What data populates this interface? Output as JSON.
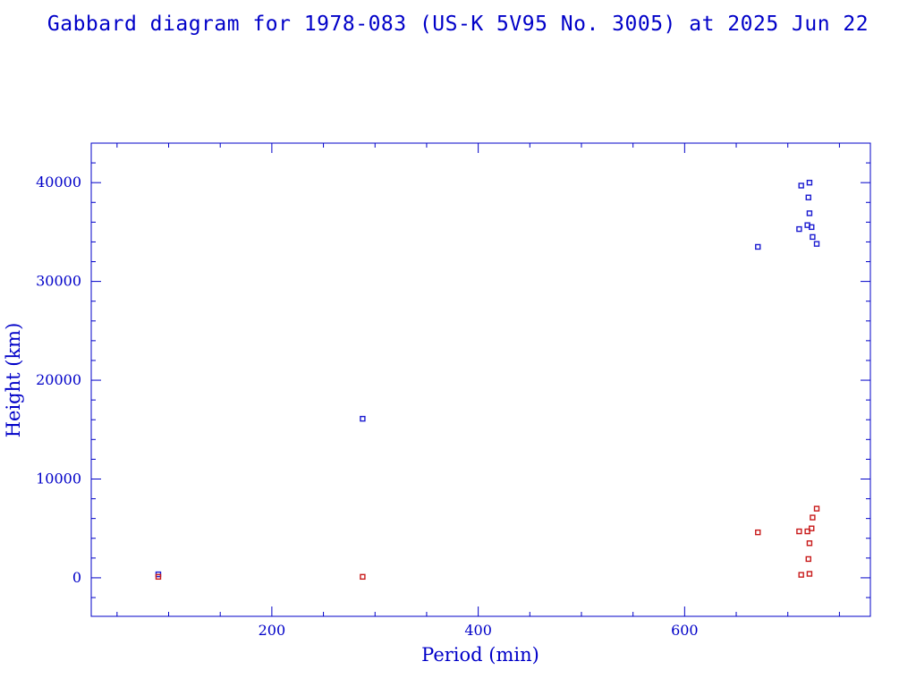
{
  "chart_data": {
    "type": "scatter",
    "title": "Gabbard diagram for 1978-083 (US-K 5V95 No. 3005) at 2025 Jun 22",
    "xlabel": "Period (min)",
    "ylabel": "Height (km)",
    "xlim": [
      25,
      780
    ],
    "ylim": [
      -3900,
      44000
    ],
    "xticks": [
      200,
      400,
      600
    ],
    "yticks": [
      0,
      10000,
      20000,
      30000,
      40000
    ],
    "colors": {
      "apogee": "#1a1ad0",
      "perigee": "#c81a1a",
      "axes": "#0000c8"
    },
    "series": [
      {
        "role": "apogee",
        "points": [
          [
            90,
            350
          ],
          [
            288,
            16100
          ],
          [
            671,
            33500
          ],
          [
            711,
            35300
          ],
          [
            713,
            39700
          ],
          [
            719,
            35700
          ],
          [
            720,
            38500
          ],
          [
            721,
            40000
          ],
          [
            721,
            36900
          ],
          [
            723,
            35500
          ],
          [
            724,
            34500
          ],
          [
            728,
            33800
          ]
        ]
      },
      {
        "role": "perigee",
        "points": [
          [
            90,
            100
          ],
          [
            288,
            100
          ],
          [
            671,
            4600
          ],
          [
            711,
            4700
          ],
          [
            713,
            300
          ],
          [
            719,
            4700
          ],
          [
            720,
            1900
          ],
          [
            721,
            400
          ],
          [
            721,
            3500
          ],
          [
            723,
            5000
          ],
          [
            724,
            6100
          ],
          [
            728,
            7000
          ]
        ]
      }
    ]
  }
}
